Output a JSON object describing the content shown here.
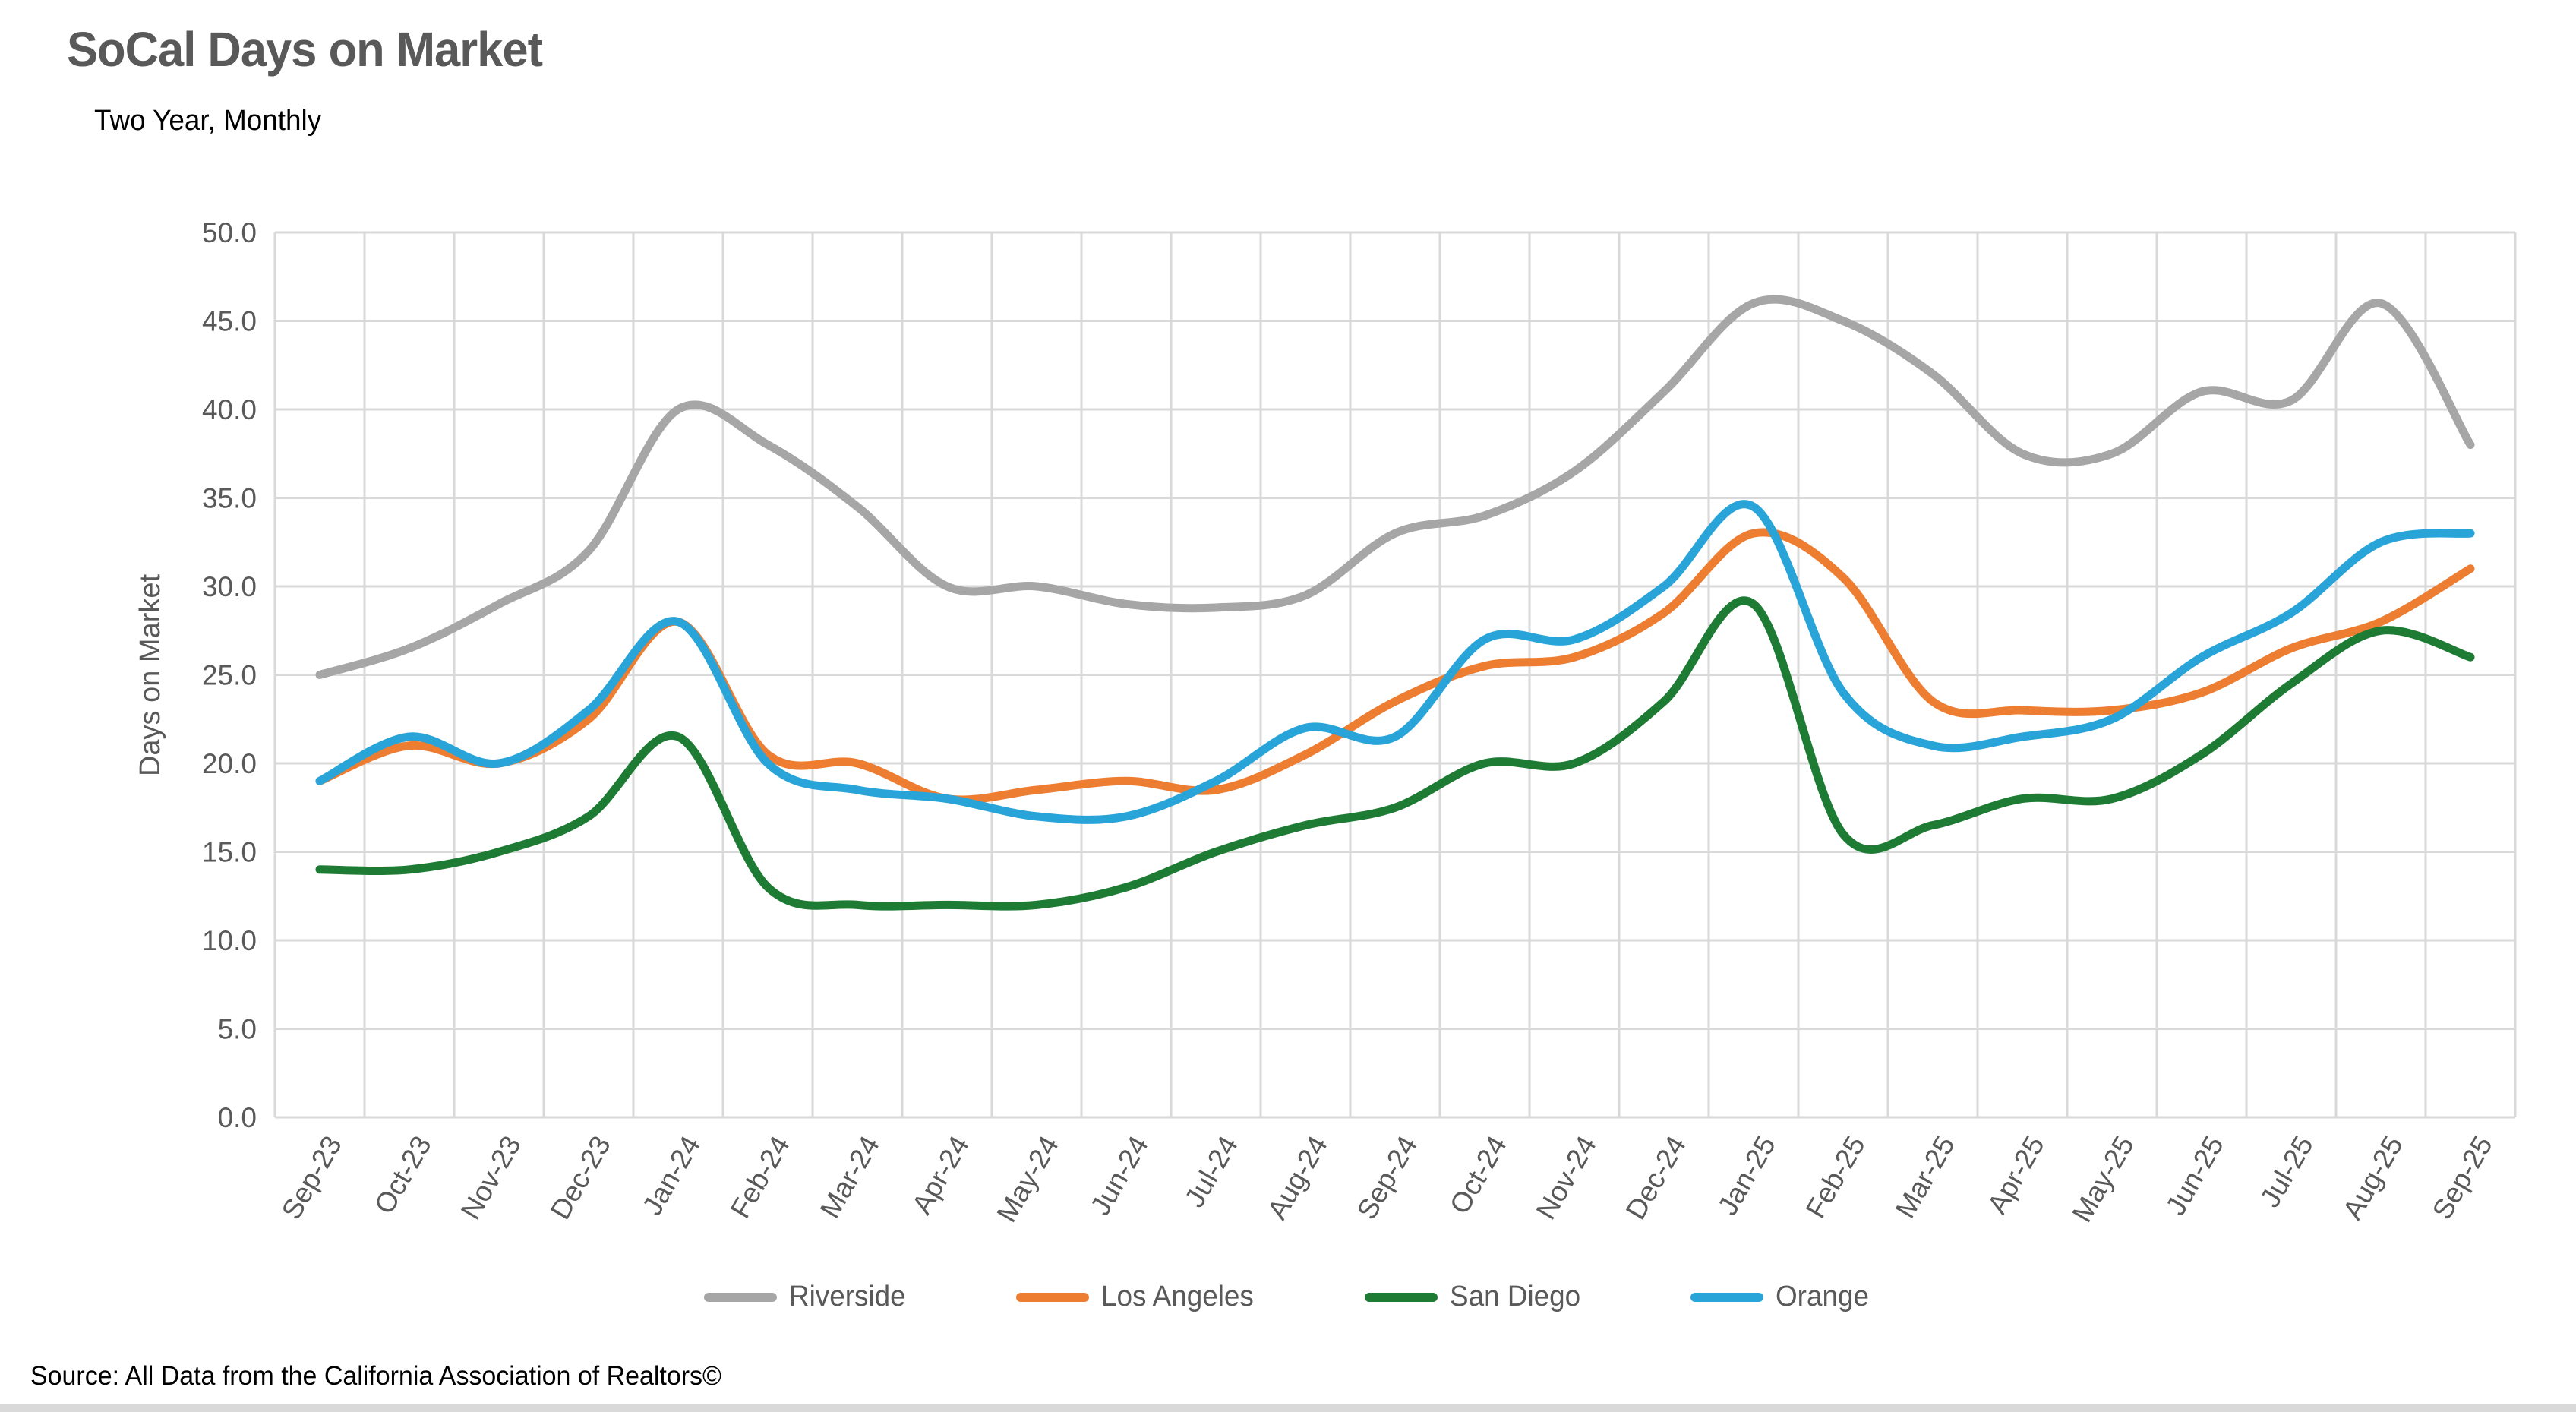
{
  "header": {
    "title": "SoCal Days on Market",
    "subtitle": "Two Year, Monthly"
  },
  "source_note": "Source: All Data from the California Association of Realtors©",
  "colors": {
    "grid": "#D9D9D9",
    "axis_text": "#595959",
    "title_text": "#595959",
    "riverside": "#A6A6A6",
    "los_angeles": "#ED7D31",
    "san_diego": "#1E7B34",
    "orange": "#29A4D9"
  },
  "chart_data": {
    "type": "line",
    "smooth": true,
    "title": "SoCal Days on Market",
    "subtitle": "Two Year, Monthly",
    "xlabel": "",
    "ylabel": "Days on Market",
    "ylim": [
      0,
      50
    ],
    "ytick_step": 5,
    "yticks": [
      "0.0",
      "5.0",
      "10.0",
      "15.0",
      "20.0",
      "25.0",
      "30.0",
      "35.0",
      "40.0",
      "45.0",
      "50.0"
    ],
    "grid": true,
    "legend_position": "bottom",
    "categories": [
      "Sep-23",
      "Oct-23",
      "Nov-23",
      "Dec-23",
      "Jan-24",
      "Feb-24",
      "Mar-24",
      "Apr-24",
      "May-24",
      "Jun-24",
      "Jul-24",
      "Aug-24",
      "Sep-24",
      "Oct-24",
      "Nov-24",
      "Dec-24",
      "Jan-25",
      "Feb-25",
      "Mar-25",
      "Apr-25",
      "May-25",
      "Jun-25",
      "Jul-25",
      "Aug-25",
      "Sep-25"
    ],
    "series": [
      {
        "name": "Riverside",
        "color": "#A6A6A6",
        "values": [
          25,
          26.5,
          29,
          32,
          40,
          38,
          34.5,
          30,
          30,
          29,
          28.8,
          29.5,
          33,
          34,
          36.5,
          41,
          46,
          45,
          42,
          37.5,
          37.5,
          41,
          40.5,
          46,
          38
        ]
      },
      {
        "name": "Los Angeles",
        "color": "#ED7D31",
        "values": [
          19,
          21,
          20,
          22.5,
          28,
          20.5,
          20,
          18,
          18.5,
          19,
          18.5,
          20.5,
          23.5,
          25.5,
          26,
          28.5,
          33,
          30.5,
          23.5,
          23,
          23,
          24,
          26.5,
          28,
          31
        ]
      },
      {
        "name": "San Diego",
        "color": "#1E7B34",
        "values": [
          14,
          14,
          15,
          17,
          21.5,
          13,
          12,
          12,
          12,
          13,
          15,
          16.5,
          17.5,
          20,
          20,
          23.5,
          29,
          16,
          16.5,
          18,
          18,
          20.5,
          24.5,
          27.5,
          26
        ]
      },
      {
        "name": "Orange",
        "color": "#29A4D9",
        "values": [
          19,
          21.5,
          20,
          23,
          28,
          20,
          18.5,
          18,
          17,
          17,
          19,
          22,
          21.5,
          27,
          27,
          30,
          34.5,
          24,
          21,
          21.5,
          22.5,
          26,
          28.5,
          32.5,
          33
        ]
      }
    ]
  }
}
